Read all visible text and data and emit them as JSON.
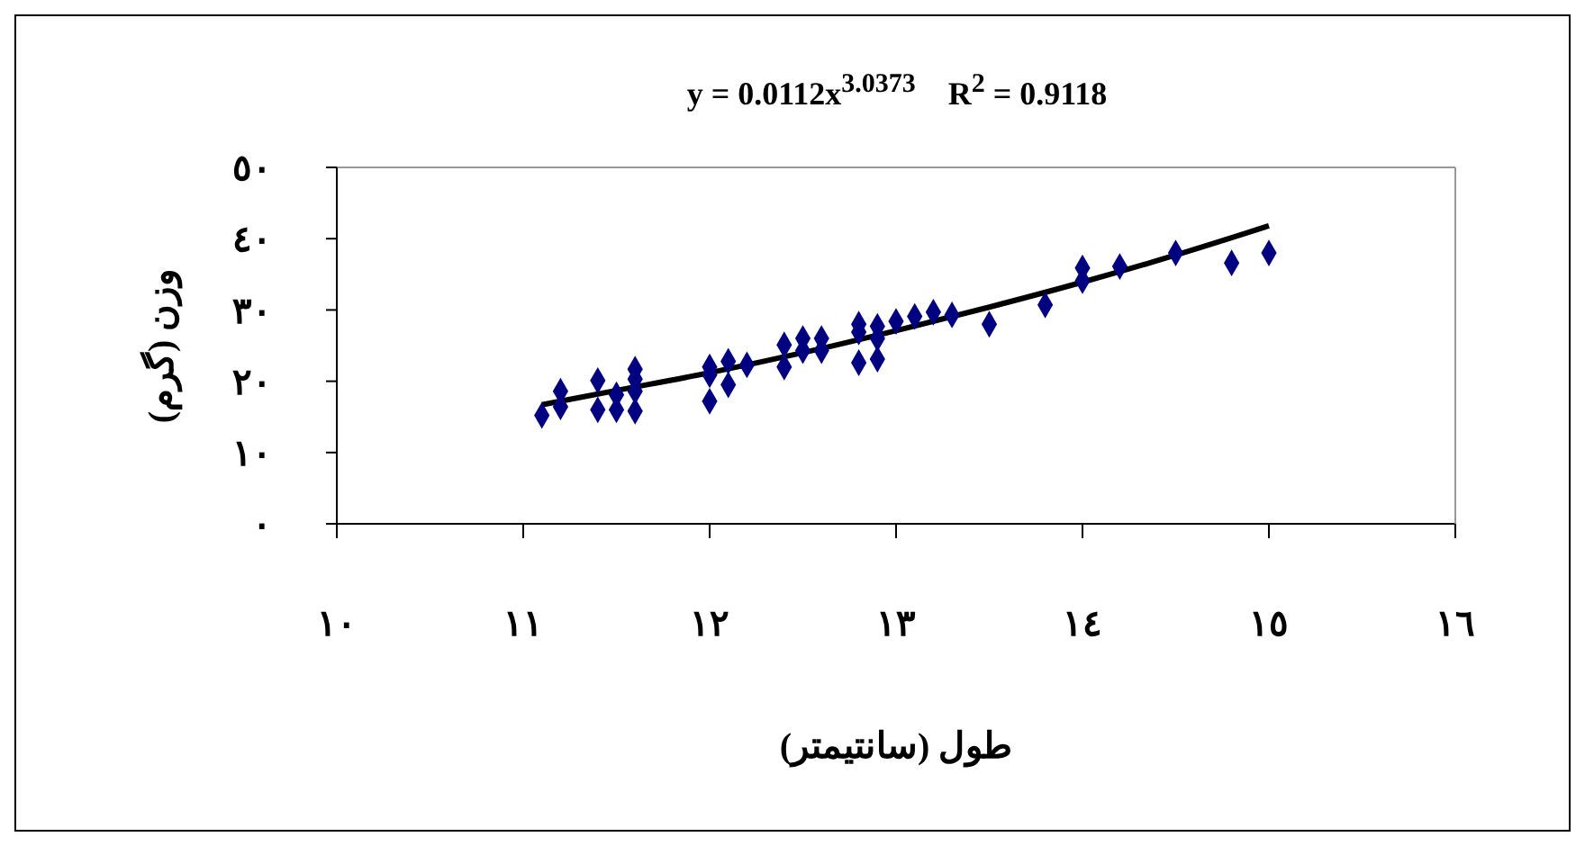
{
  "chart_data": {
    "type": "scatter",
    "title": "y = 0.0112x$^{3.0373}$    R$^{2}$ = 0.9118",
    "xlabel": "طول (سانتيمتر)",
    "ylabel": "وزن (گرم)",
    "xlim": [
      10,
      16
    ],
    "xticks": [
      {
        "value": 10,
        "label": "١٠"
      },
      {
        "value": 11,
        "label": "١١"
      },
      {
        "value": 12,
        "label": "١٢"
      },
      {
        "value": 13,
        "label": "١٣"
      },
      {
        "value": 14,
        "label": "١٤"
      },
      {
        "value": 15,
        "label": "١٥"
      },
      {
        "value": 16,
        "label": "١٦"
      }
    ],
    "ylim": [
      0,
      50
    ],
    "yticks": [
      {
        "value": 0,
        "label": "٠"
      },
      {
        "value": 10,
        "label": "١٠"
      },
      {
        "value": 20,
        "label": "٢٠"
      },
      {
        "value": 30,
        "label": "٣٠"
      },
      {
        "value": 40,
        "label": "٤٠"
      },
      {
        "value": 50,
        "label": "٥٠"
      }
    ],
    "grid": false,
    "legend": false,
    "marker": "diamond",
    "series": [
      {
        "color": "#000080",
        "x": [
          11.1,
          11.2,
          11.2,
          11.4,
          11.4,
          11.5,
          11.5,
          11.6,
          11.6,
          11.6,
          11.6,
          12.0,
          12.0,
          12.0,
          12.1,
          12.1,
          12.2,
          12.4,
          12.4,
          12.5,
          12.5,
          12.6,
          12.6,
          12.8,
          12.8,
          12.8,
          12.9,
          12.9,
          12.9,
          13.0,
          13.1,
          13.2,
          13.3,
          13.5,
          13.8,
          14.0,
          14.0,
          14.2,
          14.5,
          14.8,
          15.0
        ],
        "values": [
          15.2,
          18.6,
          16.4,
          20.1,
          16.0,
          18.1,
          16.0,
          21.7,
          20.3,
          18.6,
          15.8,
          22.0,
          20.9,
          17.2,
          22.8,
          19.5,
          22.3,
          25.1,
          22.0,
          26.0,
          24.3,
          26.0,
          24.3,
          28.0,
          26.9,
          22.6,
          27.7,
          26.0,
          23.1,
          28.4,
          29.1,
          29.7,
          29.3,
          28.0,
          30.7,
          35.9,
          34.1,
          36.1,
          38.0,
          36.6,
          38.0
        ]
      },
      {
        "type": "line",
        "color": "#000000",
        "marker": "none",
        "x": [
          11.1,
          11.5,
          12,
          12.5,
          13,
          13.5,
          14,
          14.5,
          15
        ],
        "values": [
          16.7,
          18.7,
          21.2,
          24.0,
          27.1,
          30.4,
          33.9,
          37.7,
          41.8
        ]
      }
    ]
  }
}
